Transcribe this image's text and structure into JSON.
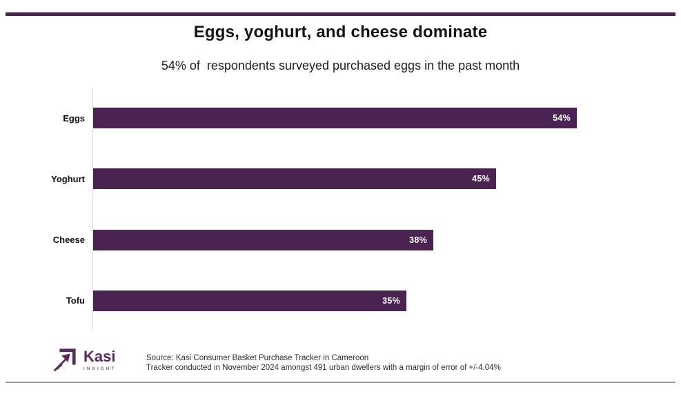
{
  "page": {
    "accent_color": "#482051",
    "bottom_rule_color": "#9f9f9f"
  },
  "header": {
    "title": "Eggs, yoghurt, and cheese dominate",
    "subtitle": "54% of  respondents surveyed purchased eggs in the past month"
  },
  "chart_data": {
    "type": "bar",
    "orientation": "horizontal",
    "title": "Eggs, yoghurt, and cheese dominate",
    "subtitle": "54% of  respondents surveyed purchased eggs in the past month",
    "categories": [
      "Eggs",
      "Yoghurt",
      "Cheese",
      "Tofu"
    ],
    "values": [
      54,
      45,
      38,
      35
    ],
    "value_labels": [
      "54%",
      "45%",
      "38%",
      "35%"
    ],
    "xlabel": "",
    "ylabel": "",
    "xlim": [
      0,
      63.5
    ],
    "grid": false,
    "legend": false,
    "bar_color": "#4a2352",
    "value_label_color": "#ffffff",
    "category_label_color": "#111111",
    "axis_line_color": "#d9d9d9"
  },
  "footer": {
    "logo": {
      "brand": "Kasi",
      "sub_brand": "INSIGHT",
      "color": "#5b2a5c",
      "icon": "kasi-arrow-logo-icon"
    },
    "source_line1": "Source: Kasi Consumer Basket Purchase Tracker in Cameroon",
    "source_line2": "Tracker conducted in November 2024 amongst 491 urban dwellers with a margin of error of +/-4.04%"
  }
}
